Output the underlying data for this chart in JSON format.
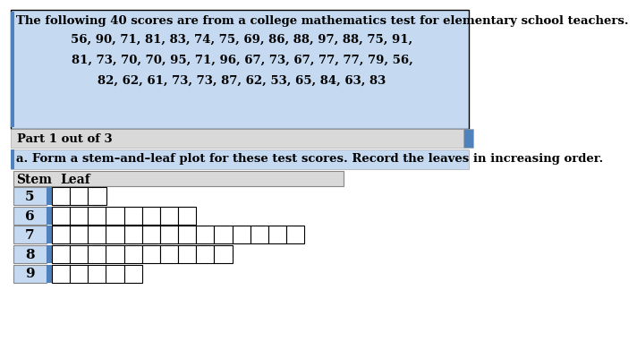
{
  "title_line": "The following 40 scores are from a college mathematics test for elementary school teachers.",
  "data_lines": [
    "56, 90, 71, 81, 83, 74, 75, 69, 86, 88, 97, 88, 75, 91,",
    "81, 73, 70, 70, 95, 71, 96, 67, 73, 67, 77, 77, 79, 56,",
    "82, 62, 61, 73, 73, 87, 62, 53, 65, 84, 63, 83"
  ],
  "part_label": "Part 1 out of 3",
  "instruction": "a. Form a stem–and–leaf plot for these test scores. Record the leaves in increasing order.",
  "stem_header": "Stem",
  "leaf_header": "Leaf",
  "stems": [
    5,
    6,
    7,
    8,
    9
  ],
  "num_boxes": [
    3,
    8,
    14,
    10,
    5
  ],
  "title_bg": "#c5d9f1",
  "part_bg": "#d9d9d9",
  "instruction_bg": "#c5d9f1",
  "stem_header_bg": "#d9d9d9",
  "stem_bg": "#c5d9f1",
  "box_color": "#ffffff",
  "box_edge": "#000000",
  "left_bar_color": "#4f81bd",
  "title_fontsize": 9.5,
  "data_fontsize": 9.5,
  "part_fontsize": 9.5,
  "instruction_fontsize": 9.5,
  "table_fontsize": 10
}
